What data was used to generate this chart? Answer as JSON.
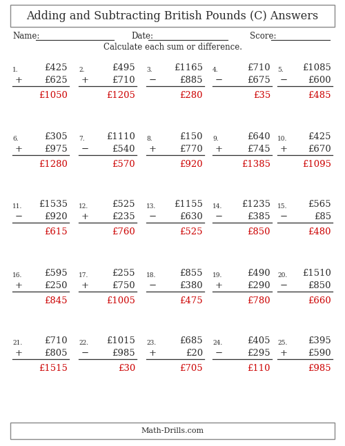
{
  "title": "Adding and Subtracting British Pounds (C) Answers",
  "subtitle": "Calculate each sum or difference.",
  "name_label": "Name:",
  "date_label": "Date:",
  "score_label": "Score:",
  "footer": "Math-Drills.com",
  "problems": [
    {
      "num": 1,
      "top": "£425",
      "op": "+",
      "bot": "£625",
      "ans": "£1050"
    },
    {
      "num": 2,
      "top": "£495",
      "op": "+",
      "bot": "£710",
      "ans": "£1205"
    },
    {
      "num": 3,
      "top": "£1165",
      "op": "−",
      "bot": "£885",
      "ans": "£280"
    },
    {
      "num": 4,
      "top": "£710",
      "op": "−",
      "bot": "£675",
      "ans": "£35"
    },
    {
      "num": 5,
      "top": "£1085",
      "op": "−",
      "bot": "£600",
      "ans": "£485"
    },
    {
      "num": 6,
      "top": "£305",
      "op": "+",
      "bot": "£975",
      "ans": "£1280"
    },
    {
      "num": 7,
      "top": "£1110",
      "op": "−",
      "bot": "£540",
      "ans": "£570"
    },
    {
      "num": 8,
      "top": "£150",
      "op": "+",
      "bot": "£770",
      "ans": "£920"
    },
    {
      "num": 9,
      "top": "£640",
      "op": "+",
      "bot": "£745",
      "ans": "£1385"
    },
    {
      "num": 10,
      "top": "£425",
      "op": "+",
      "bot": "£670",
      "ans": "£1095"
    },
    {
      "num": 11,
      "top": "£1535",
      "op": "−",
      "bot": "£920",
      "ans": "£615"
    },
    {
      "num": 12,
      "top": "£525",
      "op": "+",
      "bot": "£235",
      "ans": "£760"
    },
    {
      "num": 13,
      "top": "£1155",
      "op": "−",
      "bot": "£630",
      "ans": "£525"
    },
    {
      "num": 14,
      "top": "£1235",
      "op": "−",
      "bot": "£385",
      "ans": "£850"
    },
    {
      "num": 15,
      "top": "£565",
      "op": "−",
      "bot": "£85",
      "ans": "£480"
    },
    {
      "num": 16,
      "top": "£595",
      "op": "+",
      "bot": "£250",
      "ans": "£845"
    },
    {
      "num": 17,
      "top": "£255",
      "op": "+",
      "bot": "£750",
      "ans": "£1005"
    },
    {
      "num": 18,
      "top": "£855",
      "op": "−",
      "bot": "£380",
      "ans": "£475"
    },
    {
      "num": 19,
      "top": "£490",
      "op": "+",
      "bot": "£290",
      "ans": "£780"
    },
    {
      "num": 20,
      "top": "£1510",
      "op": "−",
      "bot": "£850",
      "ans": "£660"
    },
    {
      "num": 21,
      "top": "£710",
      "op": "+",
      "bot": "£805",
      "ans": "£1515"
    },
    {
      "num": 22,
      "top": "£1015",
      "op": "−",
      "bot": "£985",
      "ans": "£30"
    },
    {
      "num": 23,
      "top": "£685",
      "op": "+",
      "bot": "£20",
      "ans": "£705"
    },
    {
      "num": 24,
      "top": "£405",
      "op": "−",
      "bot": "£295",
      "ans": "£110"
    },
    {
      "num": 25,
      "top": "£395",
      "op": "+",
      "bot": "£590",
      "ans": "£985"
    }
  ],
  "bg_color": "#ffffff",
  "text_color": "#2b2b2b",
  "ans_color": "#cc0000",
  "line_color": "#2b2b2b",
  "border_color": "#888888",
  "font_size_title": 11.5,
  "font_size_label": 8.5,
  "font_size_problem": 9.5,
  "font_size_num": 6.5,
  "font_size_footer": 8.0
}
